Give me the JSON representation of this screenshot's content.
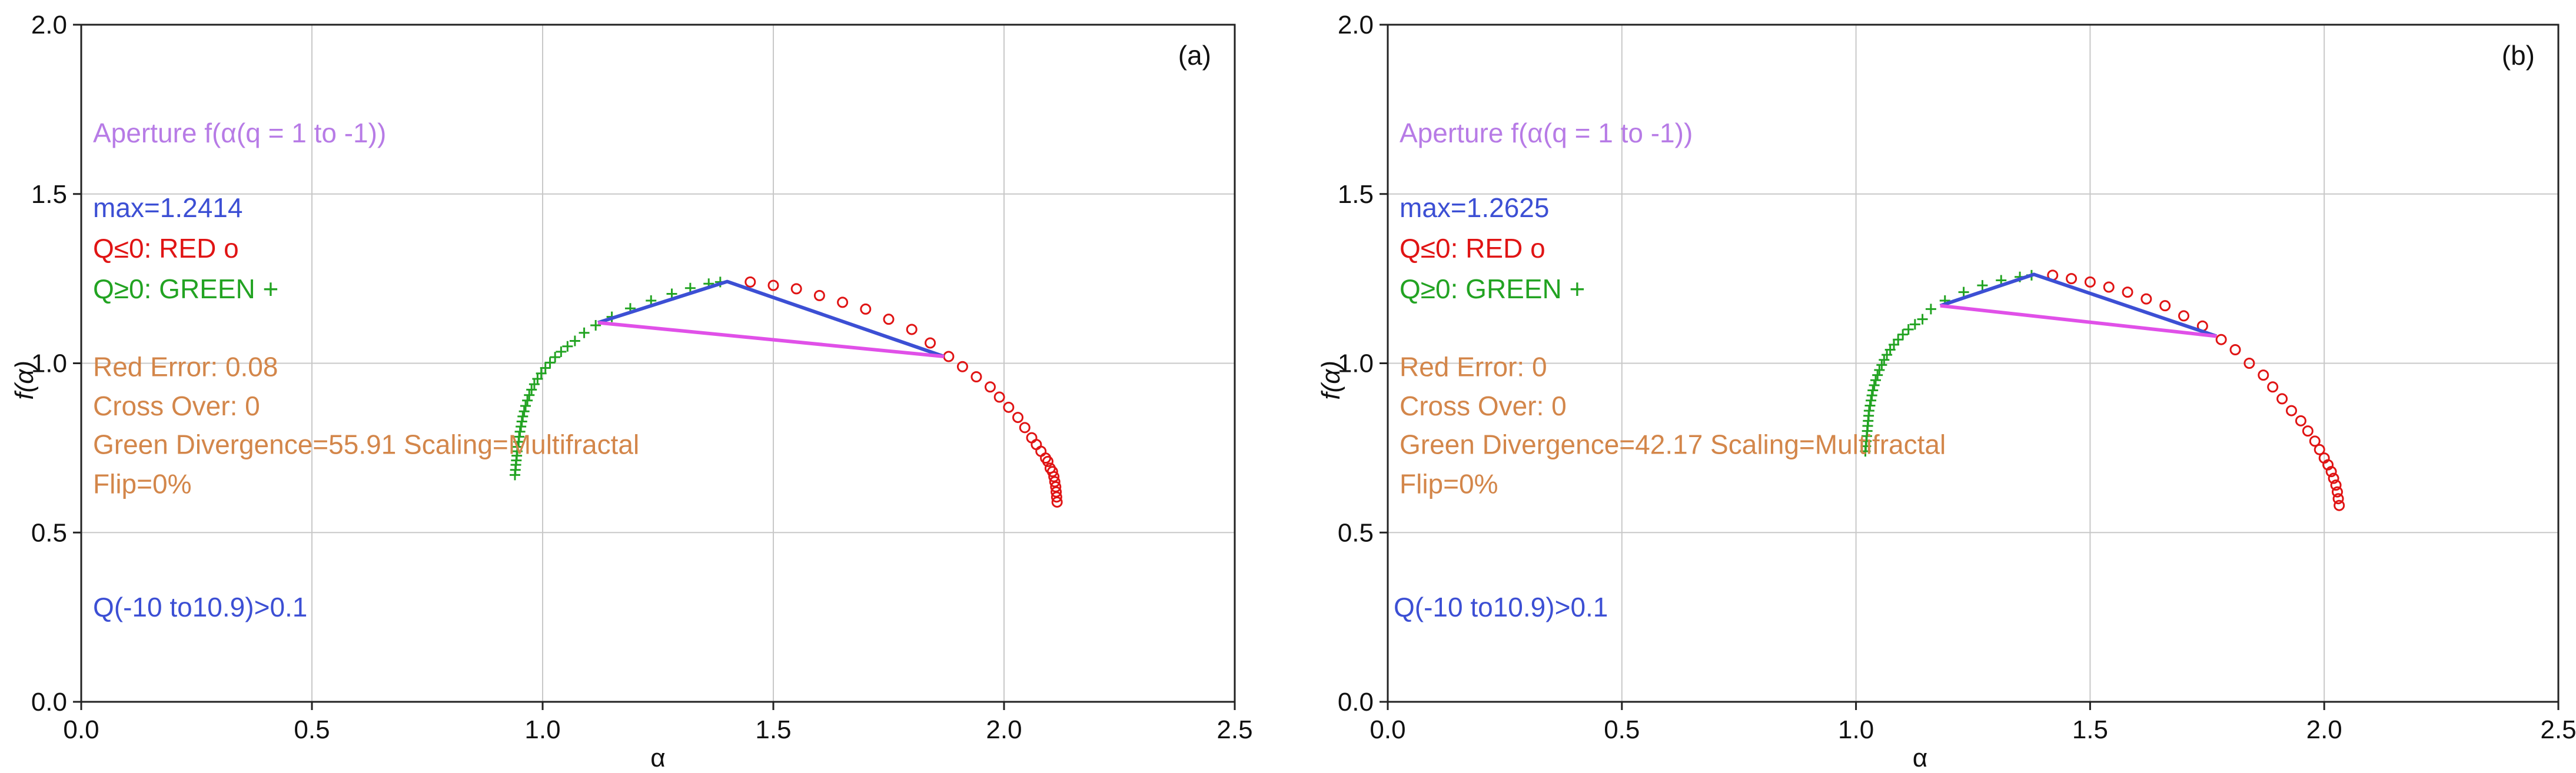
{
  "chart_data": [
    {
      "type": "scatter",
      "panel_label": "(a)",
      "xlabel": "α",
      "ylabel": "f(α)",
      "xlim": [
        0.0,
        2.5
      ],
      "ylim": [
        0.0,
        2.0
      ],
      "xticks": [
        "0.0",
        "0.5",
        "1.0",
        "1.5",
        "2.0",
        "2.5"
      ],
      "yticks": [
        "0.0",
        "0.5",
        "1.0",
        "1.5",
        "2.0"
      ],
      "grid": true,
      "colors": {
        "green": "#22a322",
        "red": "#e01414",
        "blue": "#3c4fd4",
        "magenta": "#e050e8",
        "lilac": "#b77be6",
        "orange": "#d3864a"
      },
      "series": [
        {
          "name": "Q≥0: GREEN +",
          "marker": "plus",
          "x": [
            0.94,
            0.941,
            0.942,
            0.943,
            0.944,
            0.945,
            0.946,
            0.948,
            0.949,
            0.951,
            0.953,
            0.955,
            0.957,
            0.96,
            0.963,
            0.967,
            0.971,
            0.976,
            0.982,
            0.989,
            0.997,
            1.006,
            1.016,
            1.027,
            1.04,
            1.054,
            1.07,
            1.09,
            1.115,
            1.15,
            1.19,
            1.235,
            1.28,
            1.32,
            1.36,
            1.385
          ],
          "y": [
            0.67,
            0.685,
            0.7,
            0.713,
            0.727,
            0.74,
            0.753,
            0.768,
            0.783,
            0.798,
            0.813,
            0.828,
            0.843,
            0.858,
            0.874,
            0.89,
            0.906,
            0.922,
            0.938,
            0.954,
            0.97,
            0.986,
            1.002,
            1.018,
            1.034,
            1.05,
            1.066,
            1.09,
            1.112,
            1.137,
            1.162,
            1.185,
            1.205,
            1.222,
            1.235,
            1.24
          ]
        },
        {
          "name": "Q≤0: RED o",
          "marker": "circle",
          "x": [
            1.45,
            1.5,
            1.55,
            1.6,
            1.65,
            1.7,
            1.75,
            1.8,
            1.84,
            1.88,
            1.91,
            1.94,
            1.97,
            1.99,
            2.01,
            2.03,
            2.045,
            2.06,
            2.07,
            2.08,
            2.09,
            2.095,
            2.1,
            2.105,
            2.108,
            2.11,
            2.112,
            2.113,
            2.114,
            2.115
          ],
          "y": [
            1.24,
            1.23,
            1.22,
            1.2,
            1.18,
            1.16,
            1.13,
            1.1,
            1.06,
            1.02,
            0.99,
            0.96,
            0.93,
            0.9,
            0.87,
            0.84,
            0.81,
            0.78,
            0.76,
            0.74,
            0.72,
            0.71,
            0.69,
            0.68,
            0.665,
            0.65,
            0.635,
            0.62,
            0.605,
            0.59
          ]
        }
      ],
      "lines": [
        {
          "name": "blue",
          "color": "#3c4fd4",
          "points": [
            [
              1.12,
              1.12
            ],
            [
              1.4,
              1.2414
            ],
            [
              1.87,
              1.02
            ]
          ]
        },
        {
          "name": "magenta",
          "color": "#e050e8",
          "points": [
            [
              1.12,
              1.12
            ],
            [
              1.87,
              1.02
            ]
          ]
        }
      ],
      "annotations": {
        "aperture": "Aperture f(α(q = 1 to -1))",
        "max": "max=1.2414",
        "q_red": "Q≤0: RED o",
        "q_green": "Q≥0: GREEN +",
        "red_error": "Red Error: 0.08",
        "cross_over": "Cross Over: 0",
        "divergence": "Green Divergence=55.91 Scaling=Multifractal",
        "flip": "Flip=0%",
        "q_range": "Q(-10 to10.9)>0.1"
      }
    },
    {
      "type": "scatter",
      "panel_label": "(b)",
      "xlabel": "α",
      "ylabel": "f(α)",
      "xlim": [
        0.0,
        2.5
      ],
      "ylim": [
        0.0,
        2.0
      ],
      "xticks": [
        "0.0",
        "0.5",
        "1.0",
        "1.5",
        "2.0",
        "2.5"
      ],
      "yticks": [
        "0.0",
        "0.5",
        "1.0",
        "1.5",
        "2.0"
      ],
      "grid": true,
      "colors": {
        "green": "#22a322",
        "red": "#e01414",
        "blue": "#3c4fd4",
        "magenta": "#e050e8",
        "lilac": "#b77be6",
        "orange": "#d3864a"
      },
      "series": [
        {
          "name": "Q≥0: GREEN +",
          "marker": "plus",
          "x": [
            1.02,
            1.021,
            1.022,
            1.023,
            1.024,
            1.025,
            1.026,
            1.027,
            1.028,
            1.03,
            1.032,
            1.034,
            1.036,
            1.039,
            1.042,
            1.046,
            1.05,
            1.055,
            1.06,
            1.066,
            1.073,
            1.081,
            1.09,
            1.1,
            1.112,
            1.126,
            1.142,
            1.16,
            1.19,
            1.23,
            1.27,
            1.31,
            1.35,
            1.375
          ],
          "y": [
            0.74,
            0.755,
            0.77,
            0.785,
            0.8,
            0.815,
            0.83,
            0.845,
            0.86,
            0.875,
            0.89,
            0.905,
            0.92,
            0.935,
            0.95,
            0.965,
            0.98,
            0.995,
            1.01,
            1.025,
            1.04,
            1.055,
            1.07,
            1.085,
            1.1,
            1.115,
            1.13,
            1.16,
            1.185,
            1.21,
            1.23,
            1.245,
            1.255,
            1.26
          ]
        },
        {
          "name": "Q≤0: RED o",
          "marker": "circle",
          "x": [
            1.42,
            1.46,
            1.5,
            1.54,
            1.58,
            1.62,
            1.66,
            1.7,
            1.74,
            1.78,
            1.81,
            1.84,
            1.87,
            1.89,
            1.91,
            1.93,
            1.95,
            1.965,
            1.98,
            1.99,
            2.0,
            2.008,
            2.015,
            2.02,
            2.025,
            2.028,
            2.03,
            2.032
          ],
          "y": [
            1.26,
            1.25,
            1.24,
            1.225,
            1.21,
            1.19,
            1.17,
            1.14,
            1.11,
            1.07,
            1.04,
            1.0,
            0.965,
            0.93,
            0.895,
            0.86,
            0.83,
            0.8,
            0.77,
            0.745,
            0.72,
            0.7,
            0.68,
            0.66,
            0.64,
            0.62,
            0.6,
            0.58
          ]
        }
      ],
      "lines": [
        {
          "name": "blue",
          "color": "#3c4fd4",
          "points": [
            [
              1.18,
              1.17
            ],
            [
              1.38,
              1.2625
            ],
            [
              1.77,
              1.08
            ]
          ]
        },
        {
          "name": "magenta",
          "color": "#e050e8",
          "points": [
            [
              1.18,
              1.17
            ],
            [
              1.77,
              1.08
            ]
          ]
        }
      ],
      "annotations": {
        "aperture": "Aperture f(α(q = 1 to -1))",
        "max": "max=1.2625",
        "q_red": "Q≤0: RED o",
        "q_green": "Q≥0: GREEN +",
        "red_error": "Red Error: 0",
        "cross_over": "Cross Over: 0",
        "divergence": "Green Divergence=42.17 Scaling=Multifractal",
        "flip": "Flip=0%",
        "q_range": "Q(-10 to10.9)>0.1"
      }
    }
  ]
}
